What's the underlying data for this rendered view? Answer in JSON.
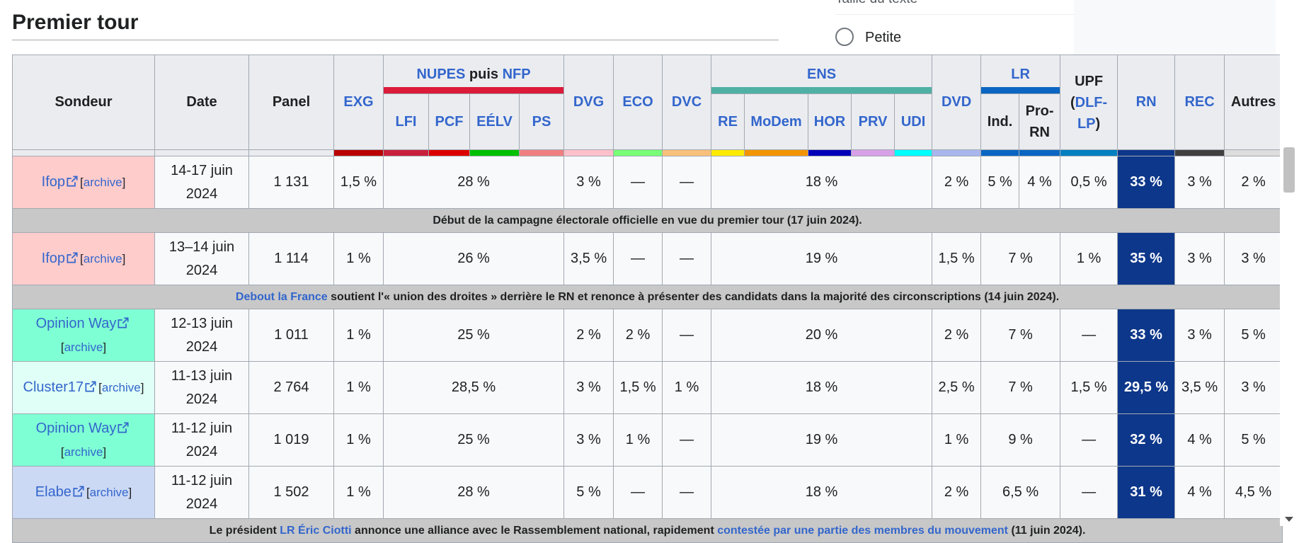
{
  "heading": "Premier tour",
  "side_panel": {
    "cut_label": "Taille du texte",
    "radio_label": "Petite"
  },
  "headers": {
    "sondeur": "Sondeur",
    "date": "Date",
    "panel": "Panel",
    "exg": "EXG",
    "nupes": "NUPES",
    "puis": "puis",
    "nfp": "NFP",
    "lfi": "LFI",
    "pcf": "PCF",
    "eelv": "EÉLV",
    "ps": "PS",
    "dvg": "DVG",
    "eco": "ECO",
    "dvc": "DVC",
    "ens": "ENS",
    "re": "RE",
    "modem": "MoDem",
    "hor": "HOR",
    "prv": "PRV",
    "udi": "UDI",
    "dvd": "DVD",
    "lr": "LR",
    "ind": "Ind.",
    "pro_rn": "Pro-RN",
    "upf": "UPF",
    "upf_open": "(",
    "dlf_lp": "DLF-LP",
    "upf_close": ")",
    "rn": "RN",
    "rec": "REC",
    "autres": "Autres"
  },
  "colors": {
    "exg": "#bb0000",
    "nupes": "#dc1a3a",
    "lfi": "#c9203c",
    "pcf": "#dd0000",
    "eelv": "#00c000",
    "ps": "#f08080",
    "dvg": "#ffc0cb",
    "eco": "#77ff77",
    "dvc": "#f8c07a",
    "ens": "#4fb1a4",
    "re": "#ffeb00",
    "modem": "#f39500",
    "hor": "#0001b8",
    "prv": "#d8a0e6",
    "udi": "#00ffff",
    "dvd": "#a9b6ed",
    "lr": "#0a66c2",
    "ind": "#0a66c2",
    "pro_rn": "#0a66c2",
    "upf": "#0080c0",
    "rn": "#0d378a",
    "rec": "#404040",
    "autres": "#dddddd",
    "rn_cell": "#0d378a"
  },
  "archive_label": "archive",
  "rows": [
    {
      "type": "poll",
      "sondeur": "Ifop",
      "bg": "#ffcccc",
      "date": "14-17 juin 2024",
      "panel": "1 131",
      "exg": "1,5 %",
      "nfp": "28 %",
      "dvg": "3 %",
      "eco": "—",
      "dvc": "—",
      "ens": "18 %",
      "dvd": "2 %",
      "ind": "5 %",
      "pro_rn": "4 %",
      "upf": "0,5 %",
      "rn": "33 %",
      "rec": "3 %",
      "autres": "2 %"
    },
    {
      "type": "event",
      "text": "Début de la campagne électorale officielle en vue du premier tour (17 juin 2024)."
    },
    {
      "type": "poll",
      "sondeur": "Ifop",
      "bg": "#ffcccc",
      "date": "13–14 juin 2024",
      "panel": "1 114",
      "exg": "1 %",
      "nfp": "26 %",
      "dvg": "3,5 %",
      "eco": "—",
      "dvc": "—",
      "ens": "19 %",
      "dvd": "1,5 %",
      "lr": "7 %",
      "upf": "1 %",
      "rn": "35 %",
      "rec": "3 %",
      "autres": "3 %"
    },
    {
      "type": "event",
      "link": "Debout la France",
      "text": " soutient l'« union des droites » derrière le RN et renonce à présenter des candidats dans la majorité des circonscriptions (14 juin 2024)."
    },
    {
      "type": "poll",
      "sondeur": "Opinion Way",
      "bg": "#7fffd4",
      "date": "12-13 juin 2024",
      "panel": "1 011",
      "exg": "1 %",
      "nfp": "25 %",
      "dvg": "2 %",
      "eco": "2 %",
      "dvc": "—",
      "ens": "20 %",
      "dvd": "2 %",
      "lr": "7 %",
      "upf": "—",
      "rn": "33 %",
      "rec": "3 %",
      "autres": "5 %"
    },
    {
      "type": "poll",
      "sondeur": "Cluster17",
      "bg": "#e0fff7",
      "date": "11-13 juin 2024",
      "panel": "2 764",
      "exg": "1 %",
      "nfp": "28,5 %",
      "dvg": "3 %",
      "eco": "1,5 %",
      "dvc": "1 %",
      "ens": "18 %",
      "dvd": "2,5 %",
      "lr": "7 %",
      "upf": "1,5 %",
      "rn": "29,5 %",
      "rec": "3,5 %",
      "autres": "3 %"
    },
    {
      "type": "poll",
      "sondeur": "Opinion Way",
      "bg": "#7fffd4",
      "date": "11-12 juin 2024",
      "panel": "1 019",
      "exg": "1 %",
      "nfp": "25 %",
      "dvg": "3 %",
      "eco": "1 %",
      "dvc": "—",
      "ens": "19 %",
      "dvd": "1 %",
      "lr": "9 %",
      "upf": "—",
      "rn": "32 %",
      "rec": "4 %",
      "autres": "5 %"
    },
    {
      "type": "poll",
      "sondeur": "Elabe",
      "bg": "#ccd9f5",
      "date": "11-12 juin 2024",
      "panel": "1 502",
      "exg": "1 %",
      "nfp": "28 %",
      "dvg": "5 %",
      "eco": "—",
      "dvc": "—",
      "ens": "18 %",
      "dvd": "2 %",
      "lr": "6,5 %",
      "upf": "—",
      "rn": "31 %",
      "rec": "4 %",
      "autres": "4,5 %"
    },
    {
      "type": "event",
      "parts": [
        {
          "t": "Le président "
        },
        {
          "t": "LR",
          "link": true
        },
        {
          "t": " "
        },
        {
          "t": "Éric Ciotti",
          "link": true
        },
        {
          "t": " annonce une alliance avec le Rassemblement national, rapidement "
        },
        {
          "t": "contestée par une partie des membres du mouvement",
          "link": true
        },
        {
          "t": " (11 juin 2024)."
        }
      ]
    }
  ]
}
